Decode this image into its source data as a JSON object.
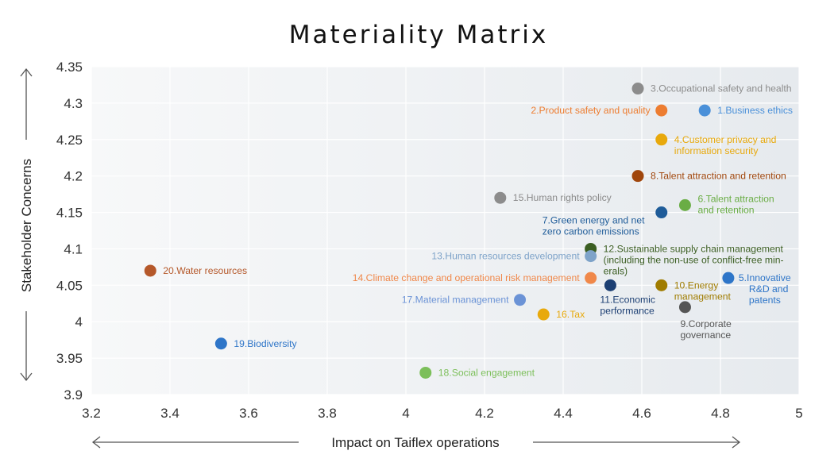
{
  "chart_data": {
    "type": "scatter",
    "title": "Materiality Matrix",
    "xlabel": "Impact on Taiflex operations",
    "ylabel": "Stakeholder Concerns",
    "xlim": [
      3.2,
      5
    ],
    "ylim": [
      3.9,
      4.35
    ],
    "xticks": [
      "3.2",
      "3.4",
      "3.6",
      "3.8",
      "4",
      "4.2",
      "4.4",
      "4.6",
      "4.8",
      "5"
    ],
    "yticks": [
      "3.9",
      "3.95",
      "4",
      "4.05",
      "4.1",
      "4.15",
      "4.2",
      "4.25",
      "4.3",
      "4.35"
    ],
    "grid": true,
    "points": [
      {
        "x": 4.76,
        "y": 4.29,
        "color": "#4a90d9",
        "label": [
          "1.Business ethics"
        ],
        "anchor": "right"
      },
      {
        "x": 4.65,
        "y": 4.29,
        "color": "#ed7d31",
        "label": [
          "2.Product safety and quality"
        ],
        "anchor": "left"
      },
      {
        "x": 4.59,
        "y": 4.32,
        "color": "#8c8c8c",
        "label": [
          "3.Occupational safety and health"
        ],
        "anchor": "right"
      },
      {
        "x": 4.65,
        "y": 4.25,
        "color": "#e8a90c",
        "label": [
          "4.Customer privacy and",
          "information security"
        ],
        "anchor": "right"
      },
      {
        "x": 4.82,
        "y": 4.06,
        "color": "#2e75c8",
        "label": [
          "5.Innovative",
          "R&D and",
          "patents"
        ],
        "anchor": "right-stack"
      },
      {
        "x": 4.71,
        "y": 4.16,
        "color": "#6aad45",
        "label": [
          "6.Talent attraction",
          "and retention"
        ],
        "anchor": "right-up"
      },
      {
        "x": 4.65,
        "y": 4.15,
        "color": "#1f5c99",
        "label": [
          "7.Green energy and net",
          "zero carbon emissions"
        ],
        "anchor": "below-left"
      },
      {
        "x": 4.59,
        "y": 4.2,
        "color": "#a0460c",
        "label": [
          "8.Talent attraction and retention"
        ],
        "anchor": "right"
      },
      {
        "x": 4.71,
        "y": 4.02,
        "color": "#555555",
        "label": [
          "9.Corporate",
          "governance"
        ],
        "anchor": "below"
      },
      {
        "x": 4.65,
        "y": 4.05,
        "color": "#a07c00",
        "label": [
          "10.Energy",
          "management"
        ],
        "anchor": "right"
      },
      {
        "x": 4.52,
        "y": 4.05,
        "color": "#1c3f73",
        "label": [
          "11.Economic",
          "performance"
        ],
        "anchor": "below-right"
      },
      {
        "x": 4.47,
        "y": 4.1,
        "color": "#3b5e22",
        "label": [
          "12.Sustainable supply chain management",
          "(including the non-use of conflict-free min-",
          "erals)"
        ],
        "anchor": "right"
      },
      {
        "x": 4.47,
        "y": 4.09,
        "color": "#7ea3c9",
        "label": [
          "13.Human resources development"
        ],
        "anchor": "left"
      },
      {
        "x": 4.47,
        "y": 4.06,
        "color": "#f0884a",
        "label": [
          "14.Climate change and operational risk management"
        ],
        "anchor": "left"
      },
      {
        "x": 4.24,
        "y": 4.17,
        "color": "#8c8c8c",
        "label": [
          "15.Human rights policy"
        ],
        "anchor": "right"
      },
      {
        "x": 4.35,
        "y": 4.01,
        "color": "#e8a90c",
        "label": [
          "16.Tax"
        ],
        "anchor": "right"
      },
      {
        "x": 4.29,
        "y": 4.03,
        "color": "#6b93d6",
        "label": [
          "17.Material management"
        ],
        "anchor": "left"
      },
      {
        "x": 4.05,
        "y": 3.93,
        "color": "#7cbf5a",
        "label": [
          "18.Social engagement"
        ],
        "anchor": "right"
      },
      {
        "x": 3.53,
        "y": 3.97,
        "color": "#2e75c8",
        "label": [
          "19.Biodiversity"
        ],
        "anchor": "right"
      },
      {
        "x": 3.35,
        "y": 4.07,
        "color": "#b5582a",
        "label": [
          "20.Water resources"
        ],
        "anchor": "right"
      }
    ]
  }
}
